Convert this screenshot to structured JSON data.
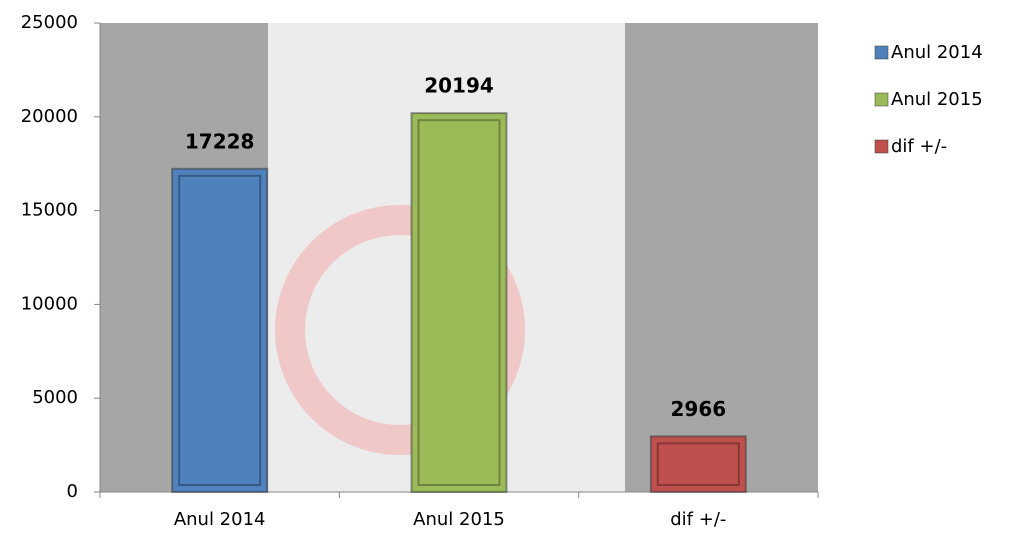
{
  "chart_data": {
    "type": "bar",
    "categories": [
      "Anul 2014",
      "Anul 2015",
      "dif +/-"
    ],
    "values": [
      17228,
      20194,
      2966
    ],
    "colors": [
      "#4f81bd",
      "#9bbb59",
      "#c0504d"
    ],
    "ylim": [
      0,
      25000
    ],
    "yticks": [
      0,
      5000,
      10000,
      15000,
      20000,
      25000
    ],
    "legend": "right"
  }
}
